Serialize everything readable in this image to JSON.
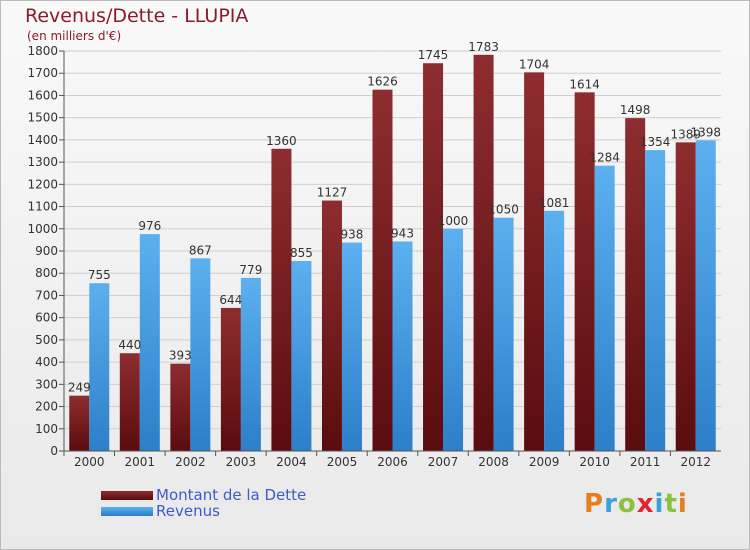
{
  "header": {
    "title": "Revenus/Dette - LLUPIA",
    "subtitle": "(en milliers d'€)"
  },
  "legend": {
    "items": [
      {
        "label": "Montant de la Dette",
        "color": "#7b1d20"
      },
      {
        "label": "Revenus",
        "color": "#4a9fe4"
      }
    ]
  },
  "logo": {
    "text": "Proxiti",
    "letters": [
      {
        "ch": "P",
        "color": "#e87d1e"
      },
      {
        "ch": "r",
        "color": "#3aa0d8"
      },
      {
        "ch": "o",
        "color": "#8bc13f"
      },
      {
        "ch": "x",
        "color": "#e2242c"
      },
      {
        "ch": "i",
        "color": "#3aa0d8"
      },
      {
        "ch": "t",
        "color": "#8bc13f"
      },
      {
        "ch": "i",
        "color": "#e87d1e"
      }
    ]
  },
  "chart_data": {
    "type": "bar",
    "categories": [
      "2000",
      "2001",
      "2002",
      "2003",
      "2004",
      "2005",
      "2006",
      "2007",
      "2008",
      "2009",
      "2010",
      "2011",
      "2012"
    ],
    "series": [
      {
        "name": "Montant de la Dette",
        "color": "#7b1d20",
        "values": [
          249,
          440,
          393,
          644,
          1360,
          1127,
          1626,
          1745,
          1783,
          1704,
          1614,
          1498,
          1389
        ]
      },
      {
        "name": "Revenus",
        "color": "#4a9fe4",
        "values": [
          755,
          976,
          867,
          779,
          855,
          938,
          943,
          1000,
          1050,
          1081,
          1284,
          1354,
          1398
        ]
      }
    ],
    "ylim": [
      0,
      1800
    ],
    "yticks": [
      0,
      100,
      200,
      300,
      400,
      500,
      600,
      700,
      800,
      900,
      1000,
      1100,
      1200,
      1300,
      1400,
      1500,
      1600,
      1700,
      1800
    ],
    "grid": true,
    "legend_position": "bottom-left"
  }
}
